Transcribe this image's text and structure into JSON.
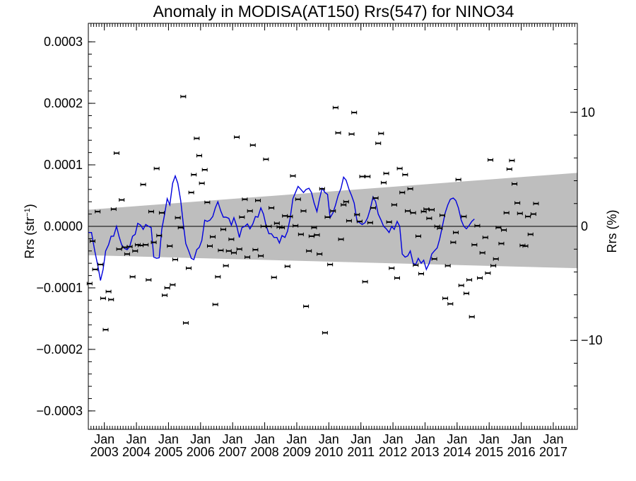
{
  "chart_data": {
    "type": "scatter",
    "title": "Anomaly in MODISA(AT150) Rrs(547) for NINO34",
    "ylabel": "Rrs (str",
    "ylabel_sup": "−1",
    "ylabel_close": ")",
    "y2label": "Rrs (%)",
    "ylim": [
      -0.00033,
      0.00033
    ],
    "y2lim": [
      -17.8,
      17.8
    ],
    "xlim": [
      2002.5,
      2017.75
    ],
    "yticks": [
      {
        "v": 0.0003,
        "label": "0.0003"
      },
      {
        "v": 0.0002,
        "label": "0.0002"
      },
      {
        "v": 0.0001,
        "label": "0.0001"
      },
      {
        "v": 0.0,
        "label": "0.0000"
      },
      {
        "v": -0.0001,
        "label": "−0.0001"
      },
      {
        "v": -0.0002,
        "label": "−0.0002"
      },
      {
        "v": -0.0003,
        "label": "−0.0003"
      }
    ],
    "y2ticks": [
      {
        "v": 10,
        "label": "10"
      },
      {
        "v": 0,
        "label": "0"
      },
      {
        "v": -10,
        "label": "−10"
      }
    ],
    "xticks": [
      {
        "v": 2003.0,
        "top": "Jan",
        "bottom": "2003"
      },
      {
        "v": 2004.0,
        "top": "Jan",
        "bottom": "2004"
      },
      {
        "v": 2005.0,
        "top": "Jan",
        "bottom": "2005"
      },
      {
        "v": 2006.0,
        "top": "Jan",
        "bottom": "2006"
      },
      {
        "v": 2007.0,
        "top": "Jan",
        "bottom": "2007"
      },
      {
        "v": 2008.0,
        "top": "Jan",
        "bottom": "2008"
      },
      {
        "v": 2009.0,
        "top": "Jan",
        "bottom": "2009"
      },
      {
        "v": 2010.0,
        "top": "Jan",
        "bottom": "2010"
      },
      {
        "v": 2011.0,
        "top": "Jan",
        "bottom": "2011"
      },
      {
        "v": 2012.0,
        "top": "Jan",
        "bottom": "2012"
      },
      {
        "v": 2013.0,
        "top": "Jan",
        "bottom": "2013"
      },
      {
        "v": 2014.0,
        "top": "Jan",
        "bottom": "2014"
      },
      {
        "v": 2015.0,
        "top": "Jan",
        "bottom": "2015"
      },
      {
        "v": 2016.0,
        "top": "Jan",
        "bottom": "2016"
      },
      {
        "v": 2017.0,
        "top": "Jan",
        "bottom": "2017"
      }
    ],
    "band": {
      "x": [
        2002.5,
        2017.75
      ],
      "upper": [
        2.7e-05,
        8.7e-05
      ],
      "lower": [
        -4.7e-05,
        -6.8e-05
      ],
      "color": "#bebebe"
    },
    "points_color": "#000000",
    "line_color": "#0000dd",
    "zero_line": true,
    "points": [
      [
        2002.54,
        -9.3e-05
      ],
      [
        2002.63,
        -2.4e-05
      ],
      [
        2002.71,
        -7e-05
      ],
      [
        2002.79,
        2.4e-05
      ],
      [
        2002.88,
        -6.2e-05
      ],
      [
        2002.96,
        -0.000117
      ],
      [
        2003.04,
        -0.000168
      ],
      [
        2003.13,
        -0.000106
      ],
      [
        2003.21,
        -0.000119
      ],
      [
        2003.29,
        2.8e-05
      ],
      [
        2003.38,
        0.000119
      ],
      [
        2003.46,
        -3.7e-05
      ],
      [
        2003.54,
        4.3e-05
      ],
      [
        2003.63,
        -3.4e-05
      ],
      [
        2003.71,
        -4.5e-05
      ],
      [
        2003.79,
        -3.3e-05
      ],
      [
        2003.88,
        -8.2e-05
      ],
      [
        2003.96,
        -4e-05
      ],
      [
        2004.04,
        -3e-05
      ],
      [
        2004.13,
        -3.1e-05
      ],
      [
        2004.21,
        6.8e-05
      ],
      [
        2004.29,
        -3e-05
      ],
      [
        2004.38,
        -8.7e-05
      ],
      [
        2004.46,
        2.4e-05
      ],
      [
        2004.54,
        -2.6e-05
      ],
      [
        2004.63,
        9.4e-05
      ],
      [
        2004.71,
        -1.5e-05
      ],
      [
        2004.79,
        2.2e-05
      ],
      [
        2004.88,
        -0.000112
      ],
      [
        2004.96,
        -0.0001
      ],
      [
        2005.04,
        -3.2e-05
      ],
      [
        2005.13,
        -9.5e-05
      ],
      [
        2005.21,
        -5.4e-05
      ],
      [
        2005.29,
        1.4e-05
      ],
      [
        2005.38,
        -2e-06
      ],
      [
        2005.46,
        0.000211
      ],
      [
        2005.54,
        -0.000157
      ],
      [
        2005.63,
        -6.8e-05
      ],
      [
        2005.71,
        5.5e-05
      ],
      [
        2005.79,
        8.4e-05
      ],
      [
        2005.88,
        0.000143
      ],
      [
        2005.96,
        0.000115
      ],
      [
        2006.04,
        7e-05
      ],
      [
        2006.13,
        9.2e-05
      ],
      [
        2006.21,
        3.9e-05
      ],
      [
        2006.29,
        -3.2e-05
      ],
      [
        2006.38,
        -1.7e-05
      ],
      [
        2006.46,
        -0.000127
      ],
      [
        2006.54,
        -8.2e-05
      ],
      [
        2006.63,
        -3.9e-05
      ],
      [
        2006.71,
        -5e-06
      ],
      [
        2006.79,
        -6.4e-05
      ],
      [
        2006.88,
        -4e-05
      ],
      [
        2006.96,
        -2.1e-05
      ],
      [
        2007.04,
        -4.3e-05
      ],
      [
        2007.13,
        0.000145
      ],
      [
        2007.21,
        -3.7e-05
      ],
      [
        2007.29,
        1.5e-05
      ],
      [
        2007.38,
        4.4e-05
      ],
      [
        2007.46,
        -5e-05
      ],
      [
        2007.54,
        2.5e-05
      ],
      [
        2007.63,
        0.000132
      ],
      [
        2007.71,
        -3.8e-05
      ],
      [
        2007.79,
        4.2e-05
      ],
      [
        2007.88,
        -4.8e-05
      ],
      [
        2007.96,
        0.0
      ],
      [
        2008.04,
        0.000109
      ],
      [
        2008.13,
        0.0
      ],
      [
        2008.21,
        3e-05
      ],
      [
        2008.29,
        -8.3e-05
      ],
      [
        2008.38,
        5e-06
      ],
      [
        2008.46,
        -1e-06
      ],
      [
        2008.54,
        -2e-06
      ],
      [
        2008.63,
        1.7e-05
      ],
      [
        2008.71,
        -6.5e-05
      ],
      [
        2008.79,
        1.6e-05
      ],
      [
        2008.88,
        8.2e-05
      ],
      [
        2008.96,
        1e-06
      ],
      [
        2009.04,
        4.4e-05
      ],
      [
        2009.13,
        -1.3e-05
      ],
      [
        2009.21,
        2.5e-05
      ],
      [
        2009.29,
        -0.00013
      ],
      [
        2009.38,
        -4e-05
      ],
      [
        2009.46,
        -1.6e-05
      ],
      [
        2009.54,
        -2e-06
      ],
      [
        2009.63,
        -1.4e-05
      ],
      [
        2009.71,
        -4.5e-05
      ],
      [
        2009.79,
        6.1e-05
      ],
      [
        2009.88,
        -0.000173
      ],
      [
        2009.96,
        1.5e-05
      ],
      [
        2010.04,
        -6.2e-05
      ],
      [
        2010.13,
        2.5e-05
      ],
      [
        2010.21,
        0.000193
      ],
      [
        2010.29,
        0.000152
      ],
      [
        2010.38,
        -2.1e-05
      ],
      [
        2010.46,
        3.5e-05
      ],
      [
        2010.54,
        4e-05
      ],
      [
        2010.63,
        9e-06
      ],
      [
        2010.71,
        0.00015
      ],
      [
        2010.79,
        0.000185
      ],
      [
        2010.88,
        1.9e-05
      ],
      [
        2010.96,
        8e-06
      ],
      [
        2011.04,
        8.1e-05
      ],
      [
        2011.13,
        -9e-05
      ],
      [
        2011.21,
        8.1e-05
      ],
      [
        2011.29,
        6e-06
      ],
      [
        2011.38,
        3e-05
      ],
      [
        2011.46,
        4.6e-05
      ],
      [
        2011.54,
        0.000135
      ],
      [
        2011.63,
        0.000151
      ],
      [
        2011.71,
        7.1e-05
      ],
      [
        2011.79,
        8.6e-05
      ],
      [
        2011.88,
        7e-06
      ],
      [
        2011.96,
        -6.8e-05
      ],
      [
        2012.04,
        3.5e-05
      ],
      [
        2012.13,
        -8.4e-05
      ],
      [
        2012.21,
        9.4e-05
      ],
      [
        2012.29,
        5.5e-05
      ],
      [
        2012.38,
        8.4e-05
      ],
      [
        2012.46,
        2.5e-05
      ],
      [
        2012.54,
        6.1e-05
      ],
      [
        2012.63,
        2.2e-05
      ],
      [
        2012.71,
        -6.3e-05
      ],
      [
        2012.79,
        -1.6e-05
      ],
      [
        2012.88,
        -7.7e-05
      ],
      [
        2012.96,
        2.4e-05
      ],
      [
        2013.04,
        2.8e-05
      ],
      [
        2013.13,
        1.3e-05
      ],
      [
        2013.21,
        2.7e-05
      ],
      [
        2013.29,
        -5.3e-05
      ],
      [
        2013.38,
        0.0
      ],
      [
        2013.46,
        -3e-06
      ],
      [
        2013.54,
        1.8e-05
      ],
      [
        2013.63,
        -0.000117
      ],
      [
        2013.71,
        -6.4e-05
      ],
      [
        2013.79,
        -0.000126
      ],
      [
        2013.88,
        -2.6e-05
      ],
      [
        2013.96,
        -1e-05
      ],
      [
        2014.04,
        7.6e-05
      ],
      [
        2014.13,
        -9.6e-05
      ],
      [
        2014.21,
        1.6e-05
      ],
      [
        2014.29,
        -0.000109
      ],
      [
        2014.38,
        -8.7e-05
      ],
      [
        2014.46,
        -0.000147
      ],
      [
        2014.54,
        -3e-05
      ],
      [
        2014.63,
        1e-06
      ],
      [
        2014.71,
        -8.4e-05
      ],
      [
        2014.79,
        -4.3e-05
      ],
      [
        2014.88,
        -1.8e-05
      ],
      [
        2014.96,
        -7.6e-05
      ],
      [
        2015.04,
        0.000108
      ],
      [
        2015.13,
        -6.4e-05
      ],
      [
        2015.21,
        -5.3e-05
      ],
      [
        2015.29,
        -2e-06
      ],
      [
        2015.38,
        -2.8e-05
      ],
      [
        2015.46,
        -6e-06
      ],
      [
        2015.54,
        2.2e-05
      ],
      [
        2015.63,
        9.3e-05
      ],
      [
        2015.71,
        0.000107
      ],
      [
        2015.79,
        6.9e-05
      ],
      [
        2015.88,
        3.8e-05
      ],
      [
        2015.96,
        2.1e-05
      ],
      [
        2016.04,
        -3.1e-05
      ],
      [
        2016.13,
        -3.2e-05
      ],
      [
        2016.21,
        1.6e-05
      ],
      [
        2016.29,
        -1.3e-05
      ],
      [
        2016.38,
        2e-05
      ],
      [
        2016.46,
        3.7e-05
      ]
    ],
    "line": [
      [
        2002.5,
        -1e-05
      ],
      [
        2002.6,
        -1e-05
      ],
      [
        2002.7,
        -4e-05
      ],
      [
        2002.8,
        -6.5e-05
      ],
      [
        2002.88,
        -8.8e-05
      ],
      [
        2002.96,
        -7e-05
      ],
      [
        2003.04,
        -4e-05
      ],
      [
        2003.13,
        -3e-05
      ],
      [
        2003.21,
        -1.6e-05
      ],
      [
        2003.29,
        -1.6e-05
      ],
      [
        2003.38,
        0.0
      ],
      [
        2003.46,
        -1.7e-05
      ],
      [
        2003.54,
        -3e-05
      ],
      [
        2003.63,
        -3.6e-05
      ],
      [
        2003.71,
        -3.8e-05
      ],
      [
        2003.79,
        -3.3e-05
      ],
      [
        2003.88,
        -1.6e-05
      ],
      [
        2003.96,
        -1.3e-05
      ],
      [
        2004.04,
        5e-06
      ],
      [
        2004.13,
        2e-06
      ],
      [
        2004.21,
        -5e-06
      ],
      [
        2004.29,
        3e-06
      ],
      [
        2004.38,
        0.0
      ],
      [
        2004.46,
        -2e-06
      ],
      [
        2004.54,
        -5e-05
      ],
      [
        2004.63,
        -5.2e-05
      ],
      [
        2004.71,
        -5.1e-05
      ],
      [
        2004.79,
        -5e-06
      ],
      [
        2004.88,
        2e-05
      ],
      [
        2004.96,
        4.5e-05
      ],
      [
        2005.04,
        3.5e-05
      ],
      [
        2005.13,
        7e-05
      ],
      [
        2005.21,
        8.2e-05
      ],
      [
        2005.29,
        7e-05
      ],
      [
        2005.38,
        4.2e-05
      ],
      [
        2005.46,
        5e-06
      ],
      [
        2005.54,
        -2.8e-05
      ],
      [
        2005.63,
        -4e-05
      ],
      [
        2005.71,
        -5.2e-05
      ],
      [
        2005.79,
        -5.4e-05
      ],
      [
        2005.88,
        -3.8e-05
      ],
      [
        2005.96,
        -3.4e-05
      ],
      [
        2006.04,
        -2.3e-05
      ],
      [
        2006.13,
        1e-05
      ],
      [
        2006.21,
        8e-06
      ],
      [
        2006.29,
        1e-05
      ],
      [
        2006.38,
        1.6e-05
      ],
      [
        2006.46,
        3e-05
      ],
      [
        2006.54,
        4e-05
      ],
      [
        2006.63,
        2.5e-05
      ],
      [
        2006.71,
        1.5e-05
      ],
      [
        2006.79,
        1.5e-05
      ],
      [
        2006.88,
        1.3e-05
      ],
      [
        2006.96,
        2e-06
      ],
      [
        2007.04,
        1.4e-05
      ],
      [
        2007.13,
        0.0
      ],
      [
        2007.21,
        -1.8e-05
      ],
      [
        2007.29,
        -2e-06
      ],
      [
        2007.38,
        0.0
      ],
      [
        2007.46,
        4e-06
      ],
      [
        2007.54,
        -4e-06
      ],
      [
        2007.63,
        4e-06
      ],
      [
        2007.71,
        1.6e-05
      ],
      [
        2007.79,
        1.5e-05
      ],
      [
        2007.88,
        3e-05
      ],
      [
        2007.96,
        2e-05
      ],
      [
        2008.04,
        2e-06
      ],
      [
        2008.13,
        -1.2e-05
      ],
      [
        2008.21,
        -1.2e-05
      ],
      [
        2008.29,
        -1.8e-05
      ],
      [
        2008.38,
        -1.8e-05
      ],
      [
        2008.46,
        -2.7e-05
      ],
      [
        2008.54,
        -1.5e-05
      ],
      [
        2008.63,
        -1.8e-05
      ],
      [
        2008.71,
        -8e-06
      ],
      [
        2008.79,
        1.2e-05
      ],
      [
        2008.88,
        4.5e-05
      ],
      [
        2008.96,
        5.5e-05
      ],
      [
        2009.04,
        6.5e-05
      ],
      [
        2009.13,
        6e-05
      ],
      [
        2009.21,
        5.5e-05
      ],
      [
        2009.29,
        6e-05
      ],
      [
        2009.38,
        6.2e-05
      ],
      [
        2009.46,
        5.5e-05
      ],
      [
        2009.54,
        3.8e-05
      ],
      [
        2009.63,
        2.4e-05
      ],
      [
        2009.71,
        4.5e-05
      ],
      [
        2009.79,
        6.2e-05
      ],
      [
        2009.88,
        5.5e-05
      ],
      [
        2009.96,
        5.2e-05
      ],
      [
        2010.04,
        1.4e-05
      ],
      [
        2010.13,
        2.2e-05
      ],
      [
        2010.21,
        3.5e-05
      ],
      [
        2010.29,
        5e-05
      ],
      [
        2010.38,
        6.2e-05
      ],
      [
        2010.46,
        8e-05
      ],
      [
        2010.54,
        7.5e-05
      ],
      [
        2010.63,
        6e-05
      ],
      [
        2010.71,
        5e-05
      ],
      [
        2010.79,
        3.8e-05
      ],
      [
        2010.88,
        8e-06
      ],
      [
        2010.96,
        6e-06
      ],
      [
        2011.04,
        3e-06
      ],
      [
        2011.13,
        6e-06
      ],
      [
        2011.21,
        1.4e-05
      ],
      [
        2011.29,
        2.8e-05
      ],
      [
        2011.38,
        4.8e-05
      ],
      [
        2011.46,
        4e-05
      ],
      [
        2011.54,
        2e-05
      ],
      [
        2011.63,
        1e-05
      ],
      [
        2011.71,
        0.0
      ],
      [
        2011.79,
        -4e-06
      ],
      [
        2011.88,
        -1e-05
      ],
      [
        2011.96,
        0.0
      ],
      [
        2012.04,
        -5e-06
      ],
      [
        2012.13,
        8e-06
      ],
      [
        2012.21,
        0.0
      ],
      [
        2012.29,
        -4.5e-05
      ],
      [
        2012.38,
        -5e-05
      ],
      [
        2012.46,
        -4.8e-05
      ],
      [
        2012.54,
        -4e-05
      ],
      [
        2012.63,
        -6e-05
      ],
      [
        2012.71,
        -6.2e-05
      ],
      [
        2012.79,
        -5.2e-05
      ],
      [
        2012.88,
        -6e-05
      ],
      [
        2012.96,
        -5.5e-05
      ],
      [
        2013.04,
        -7e-05
      ],
      [
        2013.13,
        -6e-05
      ],
      [
        2013.21,
        -4.5e-05
      ],
      [
        2013.29,
        -4e-05
      ],
      [
        2013.38,
        -3.5e-05
      ],
      [
        2013.46,
        -2e-05
      ],
      [
        2013.54,
        0.0
      ],
      [
        2013.63,
        2.2e-05
      ],
      [
        2013.71,
        3.5e-05
      ],
      [
        2013.79,
        4.4e-05
      ],
      [
        2013.88,
        4.6e-05
      ],
      [
        2013.96,
        4.2e-05
      ],
      [
        2014.04,
        3e-05
      ],
      [
        2014.13,
        1e-05
      ],
      [
        2014.21,
        0.0
      ],
      [
        2014.29,
        -4e-06
      ],
      [
        2014.38,
        2e-06
      ],
      [
        2014.46,
        8e-06
      ],
      [
        2014.54,
        1.2e-05
      ]
    ]
  }
}
